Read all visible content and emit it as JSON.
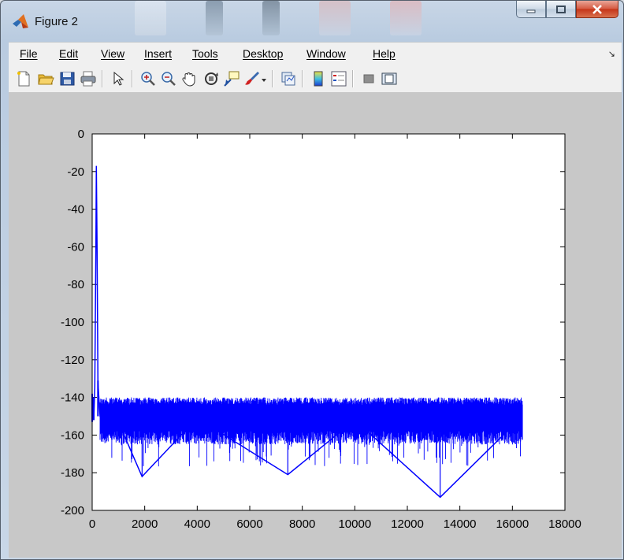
{
  "window": {
    "title": "Figure 2",
    "controls": {
      "minimize": "minimize",
      "maximize": "maximize",
      "close": "close"
    }
  },
  "menubar": {
    "items": [
      "File",
      "Edit",
      "View",
      "Insert",
      "Tools",
      "Desktop",
      "Window",
      "Help"
    ]
  },
  "toolbar": {
    "icons": [
      "new-figure-icon",
      "open-file-icon",
      "save-icon",
      "print-icon",
      "edit-plot-icon",
      "zoom-in-icon",
      "zoom-out-icon",
      "pan-icon",
      "rotate-3d-icon",
      "data-cursor-icon",
      "brush-icon",
      "brush-dropdown-icon",
      "link-plot-icon",
      "insert-colorbar-icon",
      "insert-legend-icon",
      "hide-plot-tools-icon",
      "show-plot-tools-icon"
    ]
  },
  "colors": {
    "line": "#0000ff",
    "figure_bg": "#c8c8c8",
    "axes_bg": "#ffffff"
  },
  "chart_data": {
    "type": "line",
    "title": "",
    "xlabel": "",
    "ylabel": "",
    "xlim": [
      0,
      18000
    ],
    "ylim": [
      -200,
      0
    ],
    "xticks": [
      0,
      2000,
      4000,
      6000,
      8000,
      10000,
      12000,
      14000,
      16000,
      18000
    ],
    "yticks": [
      0,
      -20,
      -40,
      -60,
      -80,
      -100,
      -120,
      -140,
      -160,
      -180,
      -200
    ],
    "grid": false,
    "series": [
      {
        "color": "#0000ff",
        "x_range": [
          1,
          16384
        ],
        "peak": {
          "x": 160,
          "y": -17
        },
        "noise_floor_band": [
          -165,
          -140
        ],
        "notable_dips": [
          [
            1900,
            -182
          ],
          [
            7450,
            -181
          ],
          [
            13250,
            -193
          ]
        ],
        "points": [
          [
            1,
            -140
          ],
          [
            60,
            -152
          ],
          [
            100,
            -135
          ],
          [
            140,
            -60
          ],
          [
            160,
            -17
          ],
          [
            185,
            -60
          ],
          [
            220,
            -132
          ],
          [
            300,
            -150
          ],
          [
            1000,
            -153
          ],
          [
            1900,
            -182
          ],
          [
            4000,
            -151
          ],
          [
            7450,
            -181
          ],
          [
            10000,
            -152
          ],
          [
            13250,
            -193
          ],
          [
            16384,
            -150
          ]
        ]
      }
    ]
  }
}
